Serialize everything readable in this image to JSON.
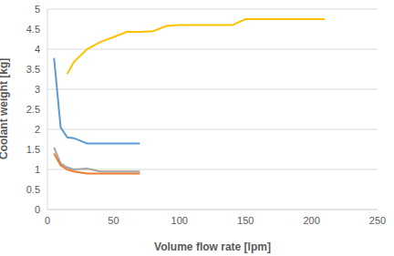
{
  "chart_data": {
    "type": "line",
    "x_label": "Volume flow rate [lpm]",
    "y_label": "Coolant weight [kg]",
    "xlim": [
      0,
      250
    ],
    "ylim": [
      0,
      5
    ],
    "xticks": [
      0,
      50,
      100,
      150,
      200,
      250
    ],
    "yticks": [
      0,
      0.5,
      1,
      1.5,
      2,
      2.5,
      3,
      3.5,
      4,
      4.5,
      5
    ],
    "grid": true,
    "series": [
      {
        "color": "#FFC000",
        "x": [
          15,
          20,
          30,
          40,
          50,
          60,
          70,
          80,
          90,
          100,
          120,
          140,
          150,
          180,
          210
        ],
        "values": [
          3.38,
          3.68,
          4.0,
          4.18,
          4.3,
          4.43,
          4.43,
          4.45,
          4.58,
          4.6,
          4.6,
          4.6,
          4.75,
          4.75,
          4.75
        ]
      },
      {
        "color": "#5B9BD5",
        "x": [
          5,
          10,
          15,
          20,
          30,
          40,
          50,
          60,
          70
        ],
        "values": [
          3.78,
          2.05,
          1.8,
          1.78,
          1.65,
          1.65,
          1.65,
          1.65,
          1.65
        ]
      },
      {
        "color": "#A5A5A5",
        "x": [
          5,
          10,
          15,
          20,
          30,
          40,
          50,
          60,
          70
        ],
        "values": [
          1.55,
          1.15,
          1.05,
          1.0,
          1.02,
          0.95,
          0.95,
          0.95,
          0.95
        ]
      },
      {
        "color": "#ED7D31",
        "x": [
          5,
          10,
          15,
          20,
          30,
          40,
          50,
          60,
          70
        ],
        "values": [
          1.4,
          1.1,
          1.0,
          0.95,
          0.9,
          0.9,
          0.9,
          0.9,
          0.9
        ]
      }
    ]
  }
}
